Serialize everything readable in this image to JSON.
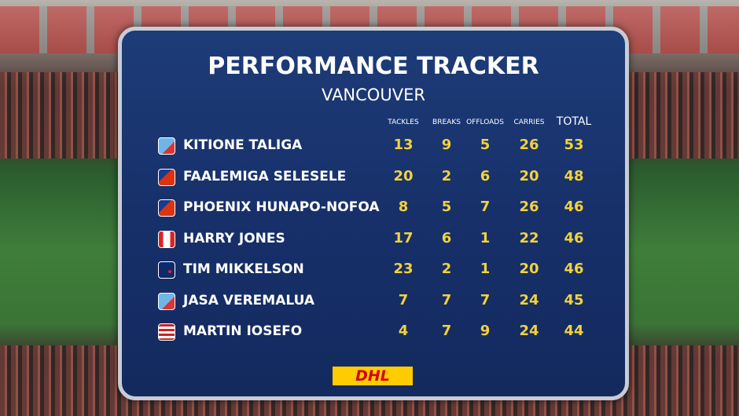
{
  "header": {
    "title": "PERFORMANCE TRACKER",
    "subtitle": "VANCOUVER"
  },
  "table": {
    "columns": [
      "TACKLES",
      "BREAKS",
      "OFFLOADS",
      "CARRIES",
      "TOTAL"
    ],
    "rows": [
      {
        "player": "KITIONE TALIGA",
        "stats": [
          13,
          9,
          5,
          26,
          53
        ]
      },
      {
        "player": "FAALEMIGA SELESELE",
        "stats": [
          20,
          2,
          6,
          20,
          48
        ]
      },
      {
        "player": "PHOENIX HUNAPO-NOFOA",
        "stats": [
          8,
          5,
          7,
          26,
          46
        ]
      },
      {
        "player": "HARRY JONES",
        "stats": [
          17,
          6,
          1,
          22,
          46
        ]
      },
      {
        "player": "TIM MIKKELSON",
        "stats": [
          23,
          2,
          1,
          20,
          46
        ]
      },
      {
        "player": "JASA VEREMALUA",
        "stats": [
          7,
          7,
          7,
          24,
          45
        ]
      },
      {
        "player": "MARTIN IOSEFO",
        "stats": [
          4,
          7,
          9,
          24,
          44
        ]
      }
    ]
  },
  "sponsor": "DHL"
}
